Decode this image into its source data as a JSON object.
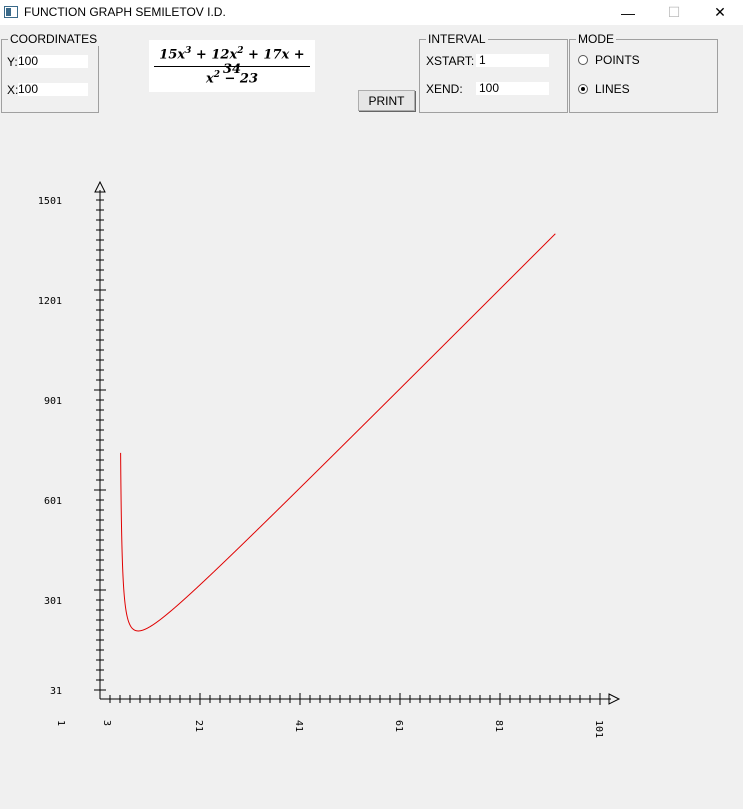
{
  "window": {
    "title": "FUNCTION GRAPH SEMILETOV I.D.",
    "min_glyph": "—",
    "max_glyph": "☐",
    "close_glyph": "✕"
  },
  "coordinates": {
    "legend": "COORDINATES",
    "y_label": "Y:",
    "y_value": "100",
    "x_label": "X:",
    "x_value": "100"
  },
  "formula": {
    "numerator_html": "15x<sup>3</sup> + 12x<sup>2</sup> + 17x + 34",
    "denominator_html": "x<sup>2</sup> − 23"
  },
  "print_label": "PRINT",
  "interval": {
    "legend": "INTERVAL",
    "xstart_label": "XSTART:",
    "xstart_value": "1",
    "xend_label": "XEND:",
    "xend_value": "100"
  },
  "mode": {
    "legend": "MODE",
    "options": [
      "POINTS",
      "LINES"
    ],
    "selected": "LINES"
  },
  "chart_data": {
    "type": "line",
    "function": "(15x^3 + 12x^2 + 17x + 34) / (x^2 - 23)",
    "x_range": [
      5,
      100
    ],
    "ylim": [
      31,
      1501
    ],
    "x_tick_labels": [
      "1",
      "3",
      "21",
      "41",
      "61",
      "81",
      "101"
    ],
    "y_tick_labels": [
      "31",
      "301",
      "601",
      "901",
      "1201",
      "1501"
    ],
    "line_color": "#e00000",
    "grid": false
  }
}
